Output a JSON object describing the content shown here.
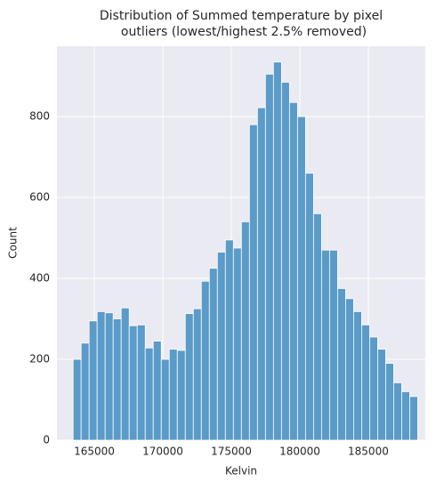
{
  "chart_data": {
    "type": "histogram",
    "title": [
      "Distribution of Summed temperature by pixel",
      "outliers (lowest/highest 2.5% removed)"
    ],
    "xlabel": "Kelvin",
    "ylabel": "Count",
    "bins": [
      163450,
      164035,
      164620,
      165205,
      165790,
      166375,
      166960,
      167545,
      168130,
      168715,
      169300,
      169885,
      170470,
      171055,
      171640,
      172225,
      172810,
      173395,
      173980,
      174565,
      175150,
      175735,
      176320,
      176905,
      177490,
      178075,
      178660,
      179245,
      179830,
      180415,
      181000,
      181585,
      182170,
      182755,
      183340,
      183925,
      184510,
      185095,
      185680,
      186265,
      186850,
      187435,
      188020,
      188605
    ],
    "counts": [
      200,
      240,
      295,
      318,
      315,
      300,
      327,
      283,
      285,
      228,
      245,
      200,
      225,
      222,
      313,
      325,
      393,
      425,
      465,
      495,
      475,
      540,
      780,
      822,
      905,
      935,
      885,
      835,
      800,
      660,
      560,
      470,
      470,
      375,
      350,
      318,
      285,
      255,
      225,
      190,
      142,
      120,
      108
    ],
    "color": "#5a9bc8",
    "xlim": [
      162270,
      189160
    ],
    "ylim": [
      0,
      974
    ],
    "xticks": [
      165000,
      170000,
      175000,
      180000,
      185000
    ],
    "yticks": [
      0,
      200,
      400,
      600,
      800
    ],
    "grid": true
  }
}
